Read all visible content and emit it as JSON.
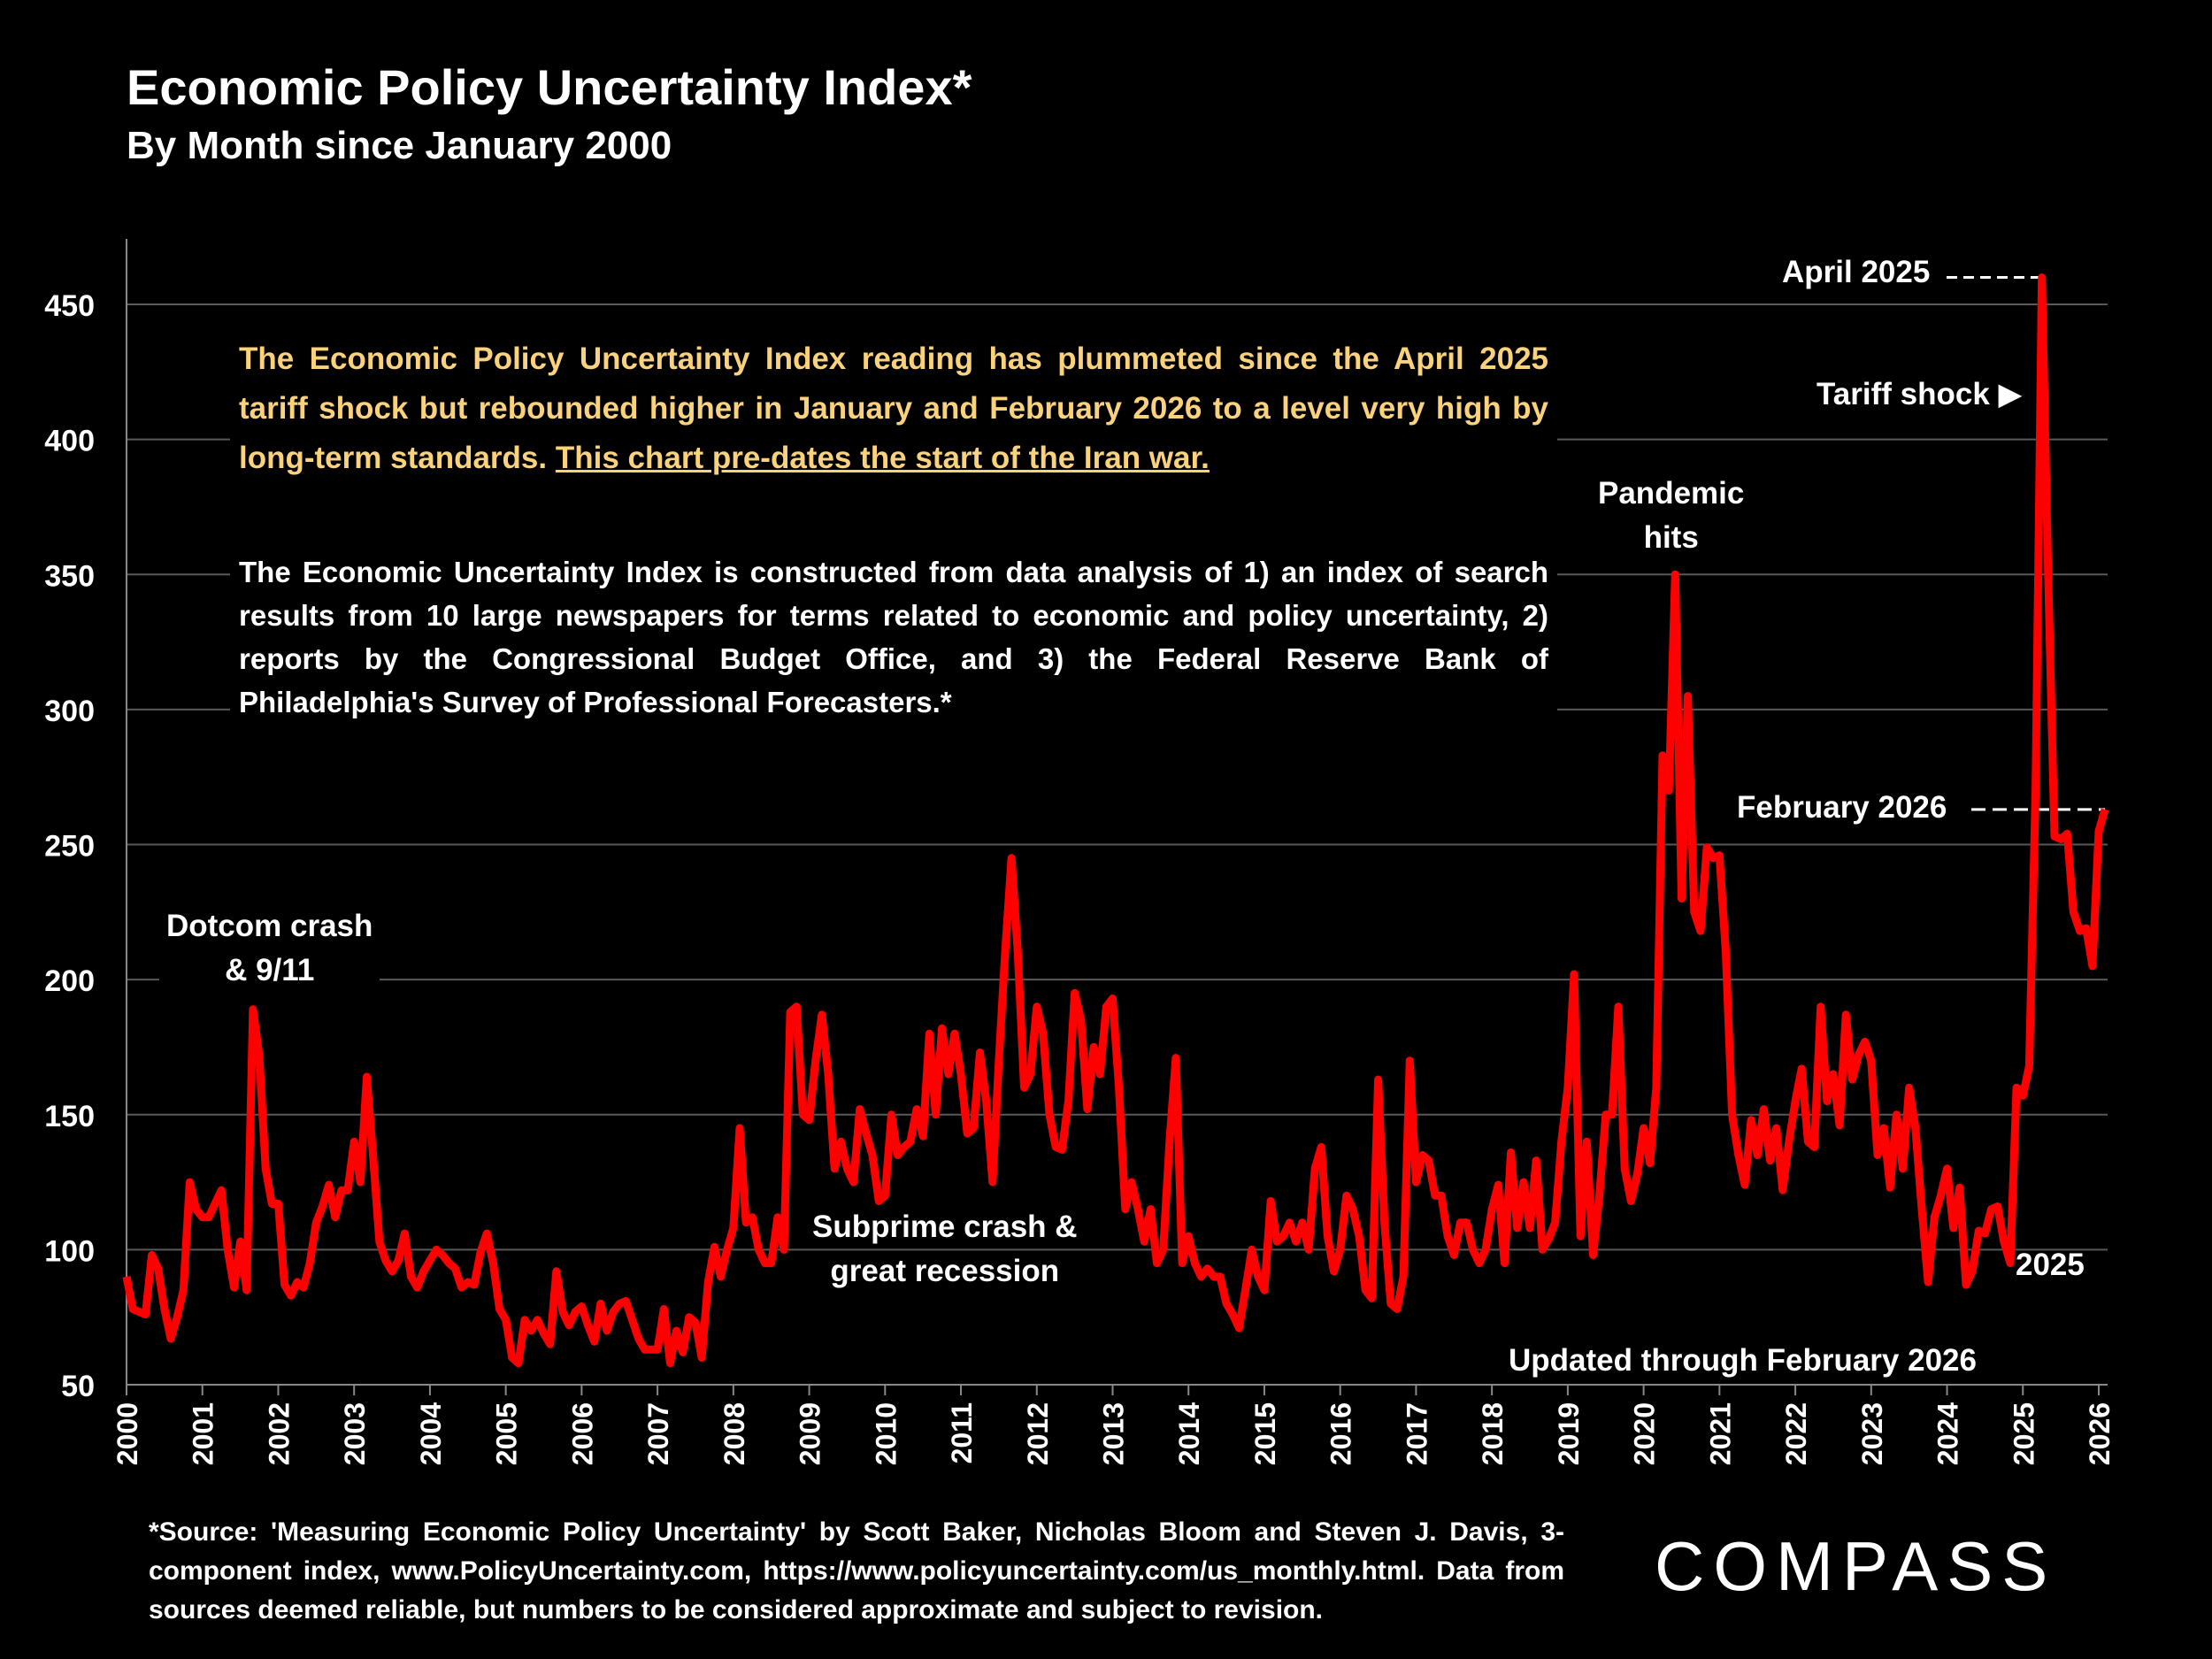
{
  "title": "Economic Policy Uncertainty Index*",
  "subtitle": "By Month since January 2000",
  "note_yellow": "The Economic Policy Uncertainty Index reading has plummeted since the April 2025 tariff shock but rebounded higher in January and February 2026 to a level very high by long-term standards.",
  "note_yellow_underlined": "This chart pre-dates the start of the Iran war.",
  "note_white": "The Economic Uncertainty Index is constructed from data analysis of 1) an index of search results from 10 large newspapers for terms related to economic and policy uncertainty, 2) reports by the Congressional Budget Office, and 3) the Federal Reserve Bank of Philadelphia's Survey of Professional Forecasters.*",
  "annotations": {
    "dotcom_1": "Dotcom crash",
    "dotcom_2": "& 9/11",
    "subprime_1": "Subprime crash &",
    "subprime_2": "great recession",
    "pandemic_1": "Pandemic",
    "pandemic_2": "hits",
    "april_2025": "April 2025",
    "tariff_shock": "Tariff shock ▶",
    "feb_2026": "February 2026",
    "year_2025": "2025",
    "updated": "Updated through February 2026"
  },
  "footnote": "*Source: 'Measuring Economic Policy Uncertainty' by Scott Baker, Nicholas Bloom and Steven J. Davis, 3-component index, www.PolicyUncertainty.com, https://www.policyuncertainty.com/us_monthly.html. Data from sources deemed reliable, but numbers to be considered approximate and subject to revision.",
  "logo": "COMPASS",
  "colors": {
    "line": "#FF0000",
    "background": "#000000",
    "note_yellow": "#FAD27C",
    "grid": "#595959"
  },
  "chart_data": {
    "type": "line",
    "title": "Economic Policy Uncertainty Index*",
    "subtitle": "By Month since January 2000",
    "ylim": [
      50,
      470
    ],
    "yticks": [
      50,
      100,
      150,
      200,
      250,
      300,
      350,
      400,
      450
    ],
    "xticks": [
      "2000",
      "2001",
      "2002",
      "2003",
      "2004",
      "2005",
      "2006",
      "2007",
      "2008",
      "2009",
      "2010",
      "2011",
      "2012",
      "2013",
      "2014",
      "2015",
      "2016",
      "2017",
      "2018",
      "2019",
      "2020",
      "2021",
      "2022",
      "2023",
      "2024",
      "2025",
      "2026"
    ],
    "grid": "horizontal",
    "series_by_year": [
      {
        "year": 2000,
        "values": [
          90,
          78,
          77,
          76,
          98,
          93,
          78,
          67,
          75,
          85,
          125,
          115
        ]
      },
      {
        "year": 2001,
        "values": [
          112,
          112,
          117,
          122,
          100,
          86,
          103,
          85,
          189,
          172,
          130,
          117
        ]
      },
      {
        "year": 2002,
        "values": [
          117,
          87,
          83,
          88,
          86,
          95,
          110,
          116,
          124,
          112,
          122,
          122
        ]
      },
      {
        "year": 2003,
        "values": [
          140,
          125,
          164,
          135,
          103,
          96,
          92,
          96,
          106,
          90,
          86,
          92
        ]
      },
      {
        "year": 2004,
        "values": [
          96,
          100,
          98,
          95,
          93,
          86,
          88,
          87,
          99,
          106,
          95,
          78
        ]
      },
      {
        "year": 2005,
        "values": [
          74,
          60,
          58,
          74,
          70,
          74,
          69,
          65,
          92,
          77,
          72,
          77
        ]
      },
      {
        "year": 2006,
        "values": [
          79,
          72,
          66,
          80,
          70,
          77,
          80,
          81,
          74,
          67,
          63,
          63
        ]
      },
      {
        "year": 2007,
        "values": [
          63,
          78,
          58,
          70,
          62,
          75,
          73,
          60,
          88,
          101,
          90,
          100
        ]
      },
      {
        "year": 2008,
        "values": [
          108,
          145,
          110,
          112,
          100,
          95,
          95,
          112,
          100,
          188,
          190,
          150
        ]
      },
      {
        "year": 2009,
        "values": [
          148,
          170,
          187,
          165,
          130,
          140,
          130,
          125,
          152,
          143,
          135,
          118
        ]
      },
      {
        "year": 2010,
        "values": [
          120,
          150,
          135,
          138,
          140,
          152,
          142,
          180,
          150,
          182,
          165,
          180
        ]
      },
      {
        "year": 2011,
        "values": [
          165,
          143,
          145,
          173,
          155,
          125,
          170,
          210,
          245,
          210,
          160,
          165
        ]
      },
      {
        "year": 2012,
        "values": [
          190,
          180,
          150,
          138,
          137,
          155,
          195,
          185,
          152,
          175,
          165,
          190
        ]
      },
      {
        "year": 2013,
        "values": [
          193,
          160,
          115,
          125,
          115,
          103,
          115,
          95,
          100,
          140,
          171,
          95
        ]
      },
      {
        "year": 2014,
        "values": [
          105,
          95,
          90,
          93,
          90,
          90,
          80,
          76,
          71,
          85,
          100,
          90
        ]
      },
      {
        "year": 2015,
        "values": [
          85,
          118,
          103,
          105,
          110,
          103,
          110,
          100,
          130,
          138,
          105,
          92
        ]
      },
      {
        "year": 2016,
        "values": [
          100,
          120,
          115,
          105,
          85,
          82,
          163,
          110,
          80,
          78,
          90,
          170
        ]
      },
      {
        "year": 2017,
        "values": [
          125,
          135,
          133,
          120,
          120,
          105,
          98,
          110,
          110,
          100,
          95,
          100
        ]
      },
      {
        "year": 2018,
        "values": [
          115,
          124,
          95,
          136,
          108,
          125,
          108,
          133,
          100,
          104,
          110,
          140
        ]
      },
      {
        "year": 2019,
        "values": [
          160,
          202,
          105,
          140,
          98,
          120,
          150,
          150,
          190,
          130,
          118,
          128
        ]
      },
      {
        "year": 2020,
        "values": [
          145,
          132,
          160,
          283,
          270,
          350,
          230,
          305,
          225,
          218,
          249,
          245
        ]
      },
      {
        "year": 2021,
        "values": [
          246,
          210,
          150,
          135,
          124,
          148,
          135,
          152,
          133,
          145,
          122,
          140
        ]
      },
      {
        "year": 2022,
        "values": [
          155,
          167,
          140,
          138,
          190,
          155,
          165,
          146,
          187,
          163,
          172,
          177
        ]
      },
      {
        "year": 2023,
        "values": [
          170,
          135,
          145,
          123,
          150,
          130,
          160,
          145,
          115,
          88,
          112,
          120
        ]
      },
      {
        "year": 2024,
        "values": [
          130,
          108,
          123,
          87,
          92,
          107,
          106,
          115,
          116,
          103,
          95,
          160
        ]
      },
      {
        "year": 2025,
        "values": [
          157,
          168,
          270,
          460,
          350,
          253,
          252,
          254,
          225,
          218,
          219,
          205
        ]
      },
      {
        "year": 2026,
        "values": [
          255,
          263
        ]
      }
    ],
    "highlights": [
      {
        "label": "April 2025",
        "value": 460
      },
      {
        "label": "February 2026",
        "value": 263
      }
    ]
  }
}
